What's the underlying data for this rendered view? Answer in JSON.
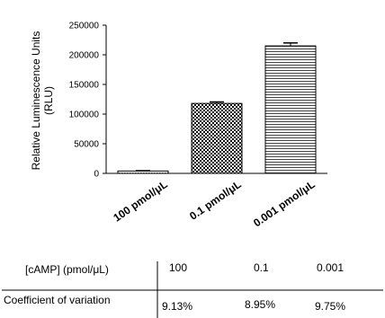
{
  "chart_data": {
    "type": "bar",
    "ylabel": "Relative Luminescence Units (RLU)",
    "ylabel_lines": [
      "Relative Luminescence Units",
      "(RLU)"
    ],
    "ylim": [
      0,
      250000
    ],
    "yticks": [
      "0",
      "50000",
      "100000",
      "150000",
      "200000",
      "250000"
    ],
    "ytick_values": [
      0,
      50000,
      100000,
      150000,
      200000,
      250000
    ],
    "categories": [
      "100 pmol/μL",
      "0.1 pmol/μL",
      "0.001 pmol/μL"
    ],
    "values": [
      4000,
      118000,
      215000
    ],
    "errors": [
      500,
      2500,
      5000
    ],
    "bar_patterns": [
      "dots",
      "checker",
      "horizontal-lines"
    ],
    "grid": false
  },
  "table": {
    "row1_label": "[cAMP] (pmol/μL)",
    "row1_values": [
      "100",
      "0.1",
      "0.001"
    ],
    "row2_label": "Coefficient of variation",
    "row2_values": [
      "9.13%",
      "8.95%",
      "9.75%"
    ]
  }
}
